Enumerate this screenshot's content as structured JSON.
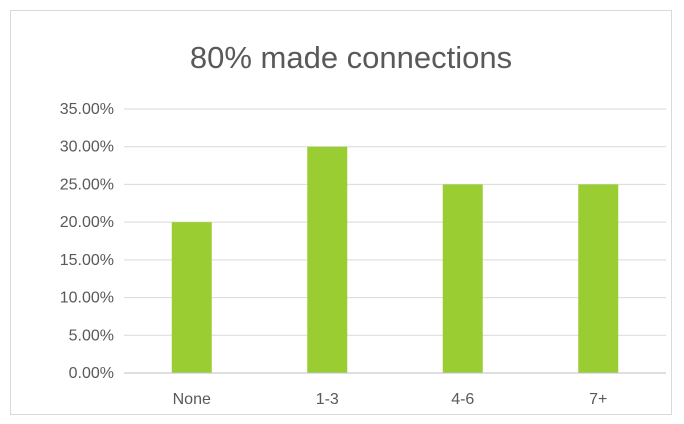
{
  "chart_data": {
    "type": "bar",
    "title": "80% made connections",
    "categories": [
      "None",
      "1-3",
      "4-6",
      "7+"
    ],
    "values": [
      0.2,
      0.3,
      0.25,
      0.25
    ],
    "ylim": [
      0,
      0.35
    ],
    "yticks": [
      0,
      0.05,
      0.1,
      0.15,
      0.2,
      0.25,
      0.3,
      0.35
    ],
    "ytick_labels": [
      "0.00%",
      "5.00%",
      "10.00%",
      "15.00%",
      "20.00%",
      "25.00%",
      "30.00%",
      "35.00%"
    ],
    "xlabel": "",
    "ylabel": "",
    "grid": true,
    "legend": "none",
    "bar_color": "#9ACD32",
    "gridline_color": "#D9D9D9",
    "axis_color": "#BFBFBF",
    "text_color": "#595959"
  }
}
